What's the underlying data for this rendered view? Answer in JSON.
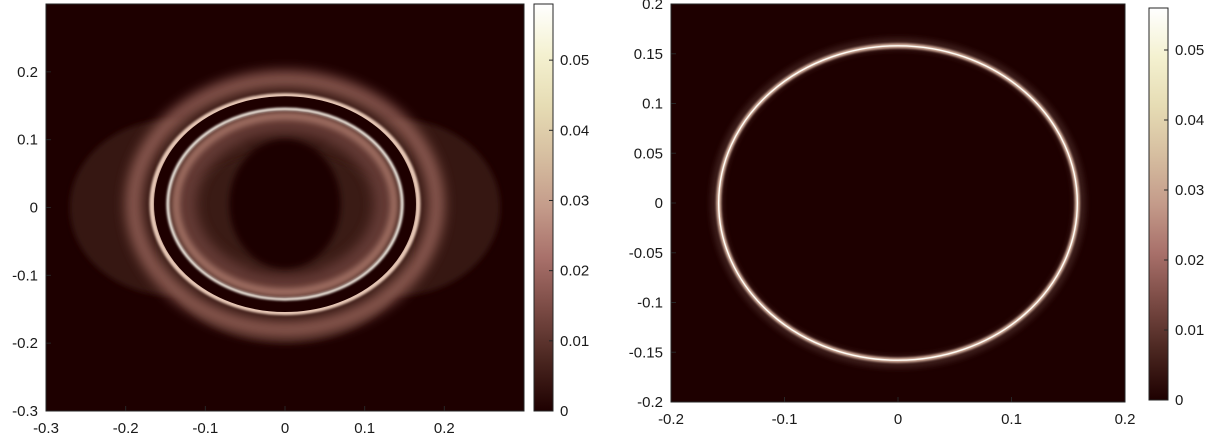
{
  "chart_data": [
    {
      "type": "heatmap",
      "title": "",
      "xlabel": "",
      "ylabel": "",
      "xlim": [
        -0.3,
        0.3
      ],
      "ylim": [
        -0.3,
        0.3
      ],
      "xticks": [
        "-0.3",
        "-0.2",
        "-0.1",
        "0",
        "0.1",
        "0.2"
      ],
      "yticks": [
        "-0.3",
        "-0.2",
        "-0.1",
        "0",
        "0.1",
        "0.2"
      ],
      "colorbar": {
        "min": 0,
        "max": 0.058,
        "ticks": [
          "0",
          "0.01",
          "0.02",
          "0.03",
          "0.04",
          "0.05"
        ]
      },
      "colormap": "pink (inverted, dark to white)",
      "features": [
        {
          "shape": "bright ring",
          "center": [
            0,
            0.005
          ],
          "radii": [
            0.167,
            0.16
          ],
          "value": 0.05
        },
        {
          "shape": "dark gap ring",
          "center": [
            0,
            0.005
          ],
          "radii": [
            0.155,
            0.148
          ],
          "value": 0
        },
        {
          "shape": "bright ring",
          "center": [
            0,
            0.005
          ],
          "radii": [
            0.147,
            0.14
          ],
          "value": 0.04
        },
        {
          "shape": "dim lobes",
          "centers": [
            [
              -0.14,
              0.0
            ],
            [
              0.14,
              0.0
            ]
          ],
          "radius": 0.13,
          "value": 0.004
        },
        {
          "shape": "dark core",
          "center": [
            0,
            0.005
          ],
          "radii": [
            0.07,
            0.095
          ],
          "value": 0
        }
      ]
    },
    {
      "type": "heatmap",
      "title": "",
      "xlabel": "",
      "ylabel": "",
      "xlim": [
        -0.2,
        0.2
      ],
      "ylim": [
        -0.2,
        0.2
      ],
      "xticks": [
        "-0.2",
        "-0.1",
        "0",
        "0.1",
        "0.2"
      ],
      "yticks": [
        "-0.2",
        "-0.15",
        "-0.1",
        "-0.05",
        "0",
        "0.05",
        "0.1",
        "0.15",
        "0.2"
      ],
      "colorbar": {
        "min": 0,
        "max": 0.056,
        "ticks": [
          "0",
          "0.01",
          "0.02",
          "0.03",
          "0.04",
          "0.05"
        ]
      },
      "colormap": "pink (inverted, dark to white)",
      "features": [
        {
          "shape": "thin bright ring",
          "center": [
            0,
            0
          ],
          "radii": [
            0.158,
            0.158
          ],
          "value": 0.055
        },
        {
          "shape": "faint halo",
          "center": [
            0,
            0
          ],
          "radii": [
            0.16,
            0.16
          ],
          "value": 0.006
        }
      ]
    }
  ],
  "colors": {
    "background": "#1e0000",
    "ring_bright": "#fdfdf8",
    "ring_warm": "#e2b6a5",
    "halo": "#5a3a36",
    "axis": "#262626",
    "colormap_stops": [
      "#1e0000",
      "#4a2620",
      "#7a4a44",
      "#a8706a",
      "#c49b8a",
      "#d6bea0",
      "#e6dcb4",
      "#f4f1d0",
      "#ffffff"
    ]
  }
}
